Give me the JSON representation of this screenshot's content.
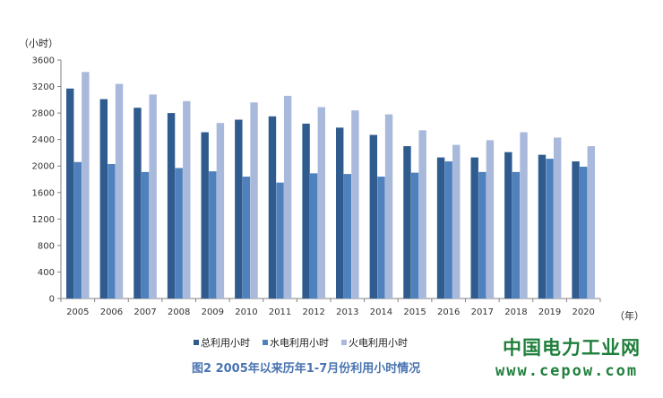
{
  "chart_data": {
    "type": "bar",
    "categories": [
      "2005",
      "2006",
      "2007",
      "2008",
      "2009",
      "2010",
      "2011",
      "2012",
      "2013",
      "2014",
      "2015",
      "2016",
      "2017",
      "2018",
      "2019",
      "2020"
    ],
    "series": [
      {
        "name": "总利用小时",
        "color": "#2f5b8f",
        "values": [
          3170,
          3010,
          2880,
          2800,
          2510,
          2700,
          2750,
          2640,
          2580,
          2470,
          2300,
          2130,
          2130,
          2210,
          2170,
          2070
        ]
      },
      {
        "name": "水电利用小时",
        "color": "#4f81bd",
        "values": [
          2060,
          2030,
          1910,
          1970,
          1920,
          1840,
          1750,
          1890,
          1880,
          1840,
          1900,
          2070,
          1910,
          1910,
          2110,
          1990
        ]
      },
      {
        "name": "火电利用小时",
        "color": "#a9b9dc",
        "values": [
          3420,
          3240,
          3080,
          2980,
          2650,
          2960,
          3060,
          2890,
          2840,
          2780,
          2540,
          2320,
          2390,
          2510,
          2430,
          2300
        ]
      }
    ],
    "y_ticks": [
      "0",
      "400",
      "800",
      "1200",
      "1600",
      "2000",
      "2400",
      "2800",
      "3200",
      "3600"
    ],
    "ylim": [
      0,
      3600
    ],
    "ylabel": "（小时）",
    "xlabel": "（年）",
    "grid": false,
    "legend_position": "bottom",
    "title": "图2  2005年以来历年1-7月份利用小时情况"
  },
  "watermark": {
    "name": "中国电力工业网",
    "url": "www.cepow.com"
  }
}
